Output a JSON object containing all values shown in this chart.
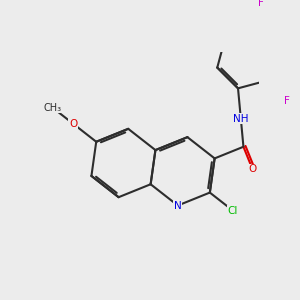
{
  "bg_color": "#ececec",
  "bond_color": "#2d2d2d",
  "colors": {
    "C": "#2d2d2d",
    "N": "#0000e0",
    "O": "#dd0000",
    "Cl": "#00bb00",
    "F": "#cc00cc",
    "H": "#5a9a8a"
  },
  "figsize": [
    3.0,
    3.0
  ],
  "dpi": 100
}
